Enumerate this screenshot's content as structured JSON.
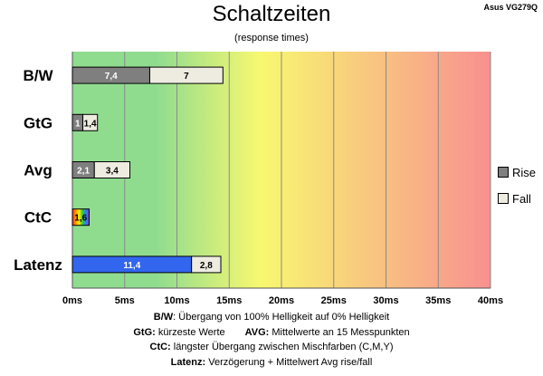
{
  "title": "Schaltzeiten",
  "subtitle": "(response times)",
  "corner_label": "Asus VG279Q",
  "colors": {
    "rise": "#7f7f7f",
    "fall": "#eeece1",
    "latency": "#3366ee",
    "gradient": [
      "#8fdc8f",
      "#f8f870",
      "#f89090"
    ]
  },
  "legend": [
    {
      "label": "Rise",
      "color": "#7f7f7f"
    },
    {
      "label": "Fall",
      "color": "#eeece1"
    }
  ],
  "notes": {
    "line1_key": "B/W",
    "line1_text": ":  Übergang von 100% Helligkeit auf 0% Helligkeit",
    "line2_key_a": "GtG:",
    "line2_text_a": " kürzeste  Werte",
    "line2_key_b": "AVG:",
    "line2_text_b": " Mittelwerte  an 15 Messpunkten",
    "line3_key": "CtC:",
    "line3_text": " längster Übergang  zwischen Mischfarben  (C,M,Y)",
    "line4_key": "Latenz:",
    "line4_text": " Verzögerung  + Mittelwert Avg rise/fall"
  },
  "chart_data": {
    "type": "bar",
    "stacked": true,
    "orientation": "horizontal",
    "title": "Schaltzeiten",
    "subtitle": "(response times)",
    "categories": [
      "B/W",
      "GtG",
      "Avg",
      "CtC",
      "Latenz"
    ],
    "series": [
      {
        "name": "Rise",
        "values": [
          7.4,
          1,
          2.1,
          1.6,
          11.4
        ],
        "labels": [
          "7,4",
          "1",
          "2,1",
          "1,6",
          "11,4"
        ]
      },
      {
        "name": "Fall",
        "values": [
          7,
          1.4,
          3.4,
          null,
          2.8
        ],
        "labels": [
          "7",
          "1,4",
          "3,4",
          "",
          "2,8"
        ]
      }
    ],
    "x_ticks": [
      "0ms",
      "5ms",
      "10ms",
      "15ms",
      "20ms",
      "25ms",
      "30ms",
      "35ms",
      "40ms"
    ],
    "xlim": [
      0,
      40
    ],
    "grid": true,
    "legend_position": "right"
  }
}
